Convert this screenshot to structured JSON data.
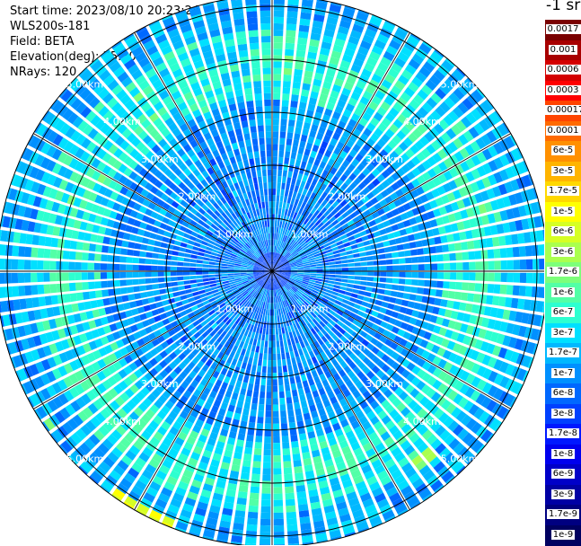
{
  "info": {
    "start_time": "Start time: 2023/08/10 20:23:24",
    "station": "WLS200s-181",
    "field": "Field: BETA",
    "elevation": "Elevation(deg): 35.30",
    "nrays": "NRays: 120"
  },
  "chart_data": {
    "type": "heatmap",
    "projection": "polar-ppi",
    "field": "BETA",
    "rays": 120,
    "range_max_km": 5.2,
    "range_rings_km": [
      1,
      2,
      3,
      4,
      5
    ],
    "ring_labels": [
      "1.00km",
      "2.00km",
      "3.00km",
      "4.00km",
      "5.00km"
    ],
    "spokes_deg": [
      0,
      30,
      60,
      90,
      120,
      150,
      180,
      210,
      240,
      270,
      300,
      330
    ],
    "colorbar": {
      "unit_label": "-1 sr",
      "tick_labels": [
        "0.0017",
        "0.001",
        "0.0006",
        "0.0003",
        "0.00017",
        "0.0001",
        "6e-5",
        "3e-5",
        "1.7e-5",
        "1e-5",
        "6e-6",
        "3e-6",
        "1.7e-6",
        "1e-6",
        "6e-7",
        "3e-7",
        "1.7e-7",
        "1e-7",
        "6e-8",
        "3e-8",
        "1.7e-8",
        "1e-8",
        "6e-9",
        "3e-9",
        "1.7e-9",
        "1e-9"
      ],
      "colors": [
        "#7a0000",
        "#a80000",
        "#d40000",
        "#ff0000",
        "#ff4400",
        "#ff6a00",
        "#ff9000",
        "#ffb400",
        "#ffd800",
        "#ffff00",
        "#d6ff24",
        "#aaff4e",
        "#7dff7a",
        "#52ffa6",
        "#2dffd0",
        "#00e0ff",
        "#00b8ff",
        "#0090ff",
        "#0068ff",
        "#0040ff",
        "#0018ff",
        "#0000ee",
        "#0000c8",
        "#0000a4",
        "#000080",
        "#000060"
      ]
    },
    "features": [
      {
        "name": "near-range low-backscatter core",
        "range_km": [
          0,
          1.5
        ],
        "value_range": [
          3e-08,
          1e-07
        ]
      },
      {
        "name": "aerosol ring",
        "range_km": [
          3.3,
          4.5
        ],
        "value_range": [
          1.7e-07,
          6e-07
        ]
      },
      {
        "name": "hotspot south-southwest",
        "range_km": [
          5.0,
          5.2
        ],
        "azimuth_deg": [
          200,
          215
        ],
        "value": 1e-05
      },
      {
        "name": "hotspot southeast",
        "range_km": [
          4.4,
          4.7
        ],
        "azimuth_deg": [
          138,
          143
        ],
        "value": 3e-06
      },
      {
        "name": "hotspot southwest",
        "range_km": [
          5.0,
          5.1
        ],
        "azimuth_deg": [
          233,
          237
        ],
        "value": 3e-06
      }
    ]
  }
}
